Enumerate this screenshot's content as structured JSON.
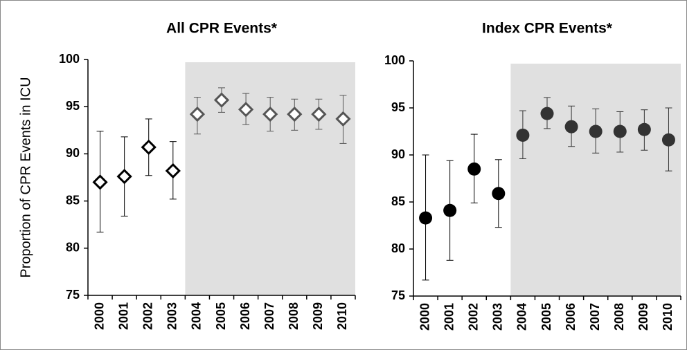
{
  "chart_data": [
    {
      "type": "point",
      "title": "All CPR Events*",
      "y_label": "Proportion of CPR Events in ICU",
      "categories": [
        "2000",
        "2001",
        "2002",
        "2003",
        "2004",
        "2005",
        "2006",
        "2007",
        "2008",
        "2009",
        "2010"
      ],
      "values": [
        87.0,
        87.6,
        90.7,
        88.2,
        94.2,
        95.7,
        94.7,
        94.2,
        94.2,
        94.2,
        93.7
      ],
      "lower": [
        81.7,
        83.4,
        87.7,
        85.2,
        92.1,
        94.4,
        93.1,
        92.4,
        92.5,
        92.6,
        91.1
      ],
      "upper": [
        92.4,
        91.8,
        93.7,
        91.3,
        96.0,
        97.0,
        96.4,
        96.0,
        95.8,
        95.8,
        96.2
      ],
      "marker": "diamond",
      "color": "#000000",
      "shaded_color": "#555555",
      "shade_start": "2004",
      "shade_fill": "#e0e0e0",
      "ylim": [
        75,
        100
      ],
      "yticks": [
        75,
        80,
        85,
        90,
        95,
        100
      ]
    },
    {
      "type": "point",
      "title": "Index CPR Events*",
      "categories": [
        "2000",
        "2001",
        "2002",
        "2003",
        "2004",
        "2005",
        "2006",
        "2007",
        "2008",
        "2009",
        "2010"
      ],
      "values": [
        83.3,
        84.1,
        88.5,
        85.9,
        92.1,
        94.4,
        93.0,
        92.5,
        92.5,
        92.7,
        91.6
      ],
      "lower": [
        76.7,
        78.8,
        84.9,
        82.3,
        89.6,
        92.8,
        90.9,
        90.2,
        90.3,
        90.5,
        88.3
      ],
      "upper": [
        90.0,
        89.4,
        92.2,
        89.5,
        94.7,
        96.1,
        95.2,
        94.9,
        94.6,
        94.8,
        95.0
      ],
      "marker": "circle",
      "color": "#000000",
      "shaded_color": "#333333",
      "shade_start": "2004",
      "shade_fill": "#e0e0e0",
      "ylim": [
        75,
        100
      ],
      "yticks": [
        75,
        80,
        85,
        90,
        95,
        100
      ]
    }
  ]
}
